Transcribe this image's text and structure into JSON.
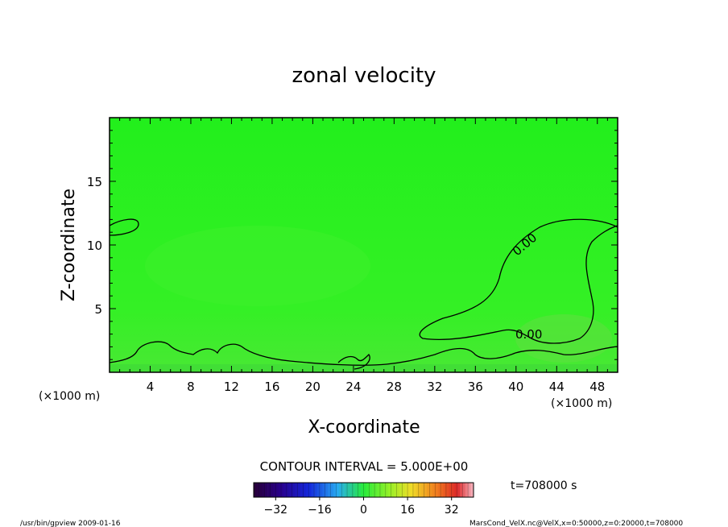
{
  "chart_data": {
    "type": "heatmap",
    "title": "zonal velocity",
    "xlabel": "X-coordinate",
    "ylabel": "Z-coordinate",
    "x_unit": "(×1000 m)",
    "y_unit": "(×1000 m)",
    "xlim": [
      0,
      50
    ],
    "ylim": [
      0,
      20
    ],
    "x_ticks": [
      "4",
      "8",
      "12",
      "16",
      "20",
      "24",
      "28",
      "32",
      "36",
      "40",
      "44",
      "48"
    ],
    "y_ticks": [
      "5",
      "10",
      "15"
    ],
    "contour_interval_text": "CONTOUR INTERVAL = 5.000E+00",
    "contour_labels": [
      "0.00",
      "0.00"
    ],
    "time_label": "t=708000  s",
    "colorbar": {
      "range": [
        -40,
        40
      ],
      "ticks": [
        "−32",
        "−16",
        "0",
        "16",
        "32"
      ]
    },
    "field_color": "#1ff21a",
    "footer_left": "/usr/bin/gpview  2009-01-16",
    "footer_right": "MarsCond_VelX.nc@VelX,x=0:50000,z=0:20000,t=708000"
  }
}
